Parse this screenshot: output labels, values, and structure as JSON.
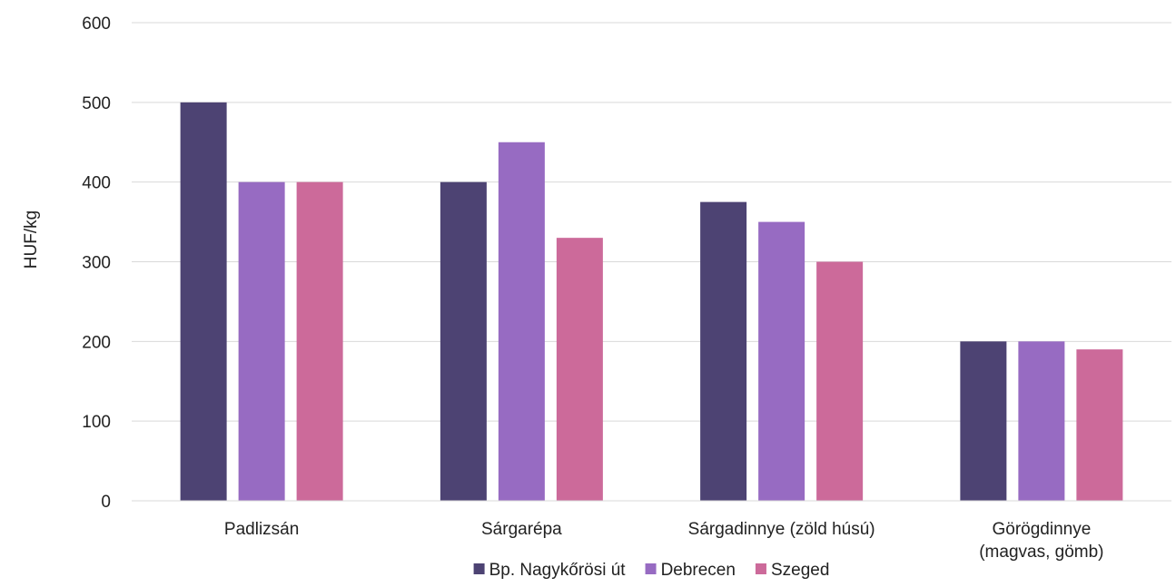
{
  "chart_data": {
    "type": "bar",
    "title": "",
    "xlabel": "",
    "ylabel": "HUF/kg",
    "ylim": [
      0,
      600
    ],
    "yticks": [
      0,
      100,
      200,
      300,
      400,
      500,
      600
    ],
    "grid": true,
    "legend_position": "bottom",
    "categories": [
      [
        "Padlizsán"
      ],
      [
        "Sárgarépa"
      ],
      [
        "Sárgadinnye (zöld húsú)"
      ],
      [
        "Görögdinnye",
        "(magvas, gömb)"
      ]
    ],
    "series": [
      {
        "name": "Bp. Nagykőrösi út",
        "color": "#4d4373",
        "values": [
          500,
          400,
          375,
          200
        ]
      },
      {
        "name": "Debrecen",
        "color": "#976bc2",
        "values": [
          400,
          450,
          350,
          200
        ]
      },
      {
        "name": "Szeged",
        "color": "#cc6a9a",
        "values": [
          400,
          330,
          300,
          190
        ]
      }
    ]
  }
}
